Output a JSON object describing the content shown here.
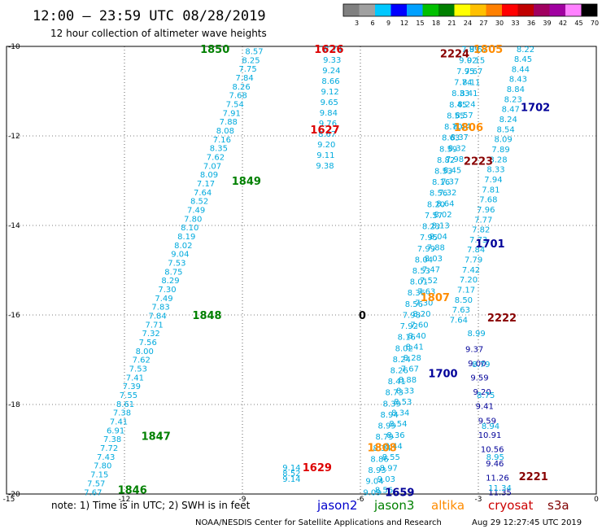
{
  "header": {
    "title": "12:00 — 23:59 UTC 08/28/2019",
    "subtitle": "12 hour collection of altimeter wave heights"
  },
  "colorbar": {
    "labels": [
      "3",
      "6",
      "9",
      "12",
      "15",
      "18",
      "21",
      "24",
      "27",
      "30",
      "33",
      "36",
      "39",
      "42",
      "45",
      "70",
      "(ft)"
    ],
    "colors": [
      "#808080",
      "#a0a0a0",
      "#00c8ff",
      "#0000ff",
      "#00a0ff",
      "#00c000",
      "#008000",
      "#ffff00",
      "#ffc000",
      "#ff8000",
      "#ff0000",
      "#c00000",
      "#a00060",
      "#a000a0",
      "#ff80ff",
      "#000000"
    ]
  },
  "footer": {
    "note": "note: 1) Time is in UTC; 2) SWH is in feet",
    "satellites": [
      {
        "name": "jason2",
        "color": "#0000cc"
      },
      {
        "name": "jason3",
        "color": "#008000"
      },
      {
        "name": "altika",
        "color": "#ff8c00"
      },
      {
        "name": "cryosat",
        "color": "#cc0000"
      },
      {
        "name": "s3a",
        "color": "#800000"
      }
    ],
    "credit": "NOAA/NESDIS Center for Satellite Applications and Research",
    "timestamp": "Aug 29 12:27:45 UTC 2019"
  },
  "chart_data": {
    "type": "scatter",
    "xlim": [
      -15,
      0
    ],
    "ylim": [
      -20,
      -10
    ],
    "x_ticks": [
      "-15",
      "-12",
      "-9",
      "-6",
      "-3",
      "0"
    ],
    "y_ticks": [
      "-10",
      "-12",
      "-14",
      "-16",
      "-18",
      "-20"
    ],
    "grid": true,
    "palette": {
      "lt": "#00aadd",
      "db": "#000099",
      "gr": "#008000",
      "rd": "#dd0000",
      "or": "#ff8c00",
      "mr": "#880000",
      "bk": "#000000"
    },
    "passes": [
      {
        "label": "1850",
        "x": -9.7,
        "y": -10.05,
        "c": "gr"
      },
      {
        "label": "1849",
        "x": -8.9,
        "y": -13.0,
        "c": "gr"
      },
      {
        "label": "1848",
        "x": -9.9,
        "y": -16.0,
        "c": "gr"
      },
      {
        "label": "1847",
        "x": -11.2,
        "y": -18.7,
        "c": "gr"
      },
      {
        "label": "1846",
        "x": -11.8,
        "y": -19.9,
        "c": "gr"
      },
      {
        "label": "1626",
        "x": -6.8,
        "y": -10.05,
        "c": "rd"
      },
      {
        "label": "1627",
        "x": -6.9,
        "y": -11.85,
        "c": "rd"
      },
      {
        "label": "1629",
        "x": -7.1,
        "y": -19.4,
        "c": "rd"
      },
      {
        "label": "2224",
        "x": -3.6,
        "y": -10.15,
        "c": "mr"
      },
      {
        "label": "2223",
        "x": -3.0,
        "y": -12.55,
        "c": "mr"
      },
      {
        "label": "2222",
        "x": -2.4,
        "y": -16.05,
        "c": "mr"
      },
      {
        "label": "2221",
        "x": -1.6,
        "y": -19.6,
        "c": "mr"
      },
      {
        "label": "1805",
        "x": -2.75,
        "y": -10.05,
        "c": "or"
      },
      {
        "label": "1806",
        "x": -3.25,
        "y": -11.8,
        "c": "or"
      },
      {
        "label": "1807",
        "x": -4.1,
        "y": -15.6,
        "c": "or"
      },
      {
        "label": "1808",
        "x": -5.45,
        "y": -18.95,
        "c": "or"
      },
      {
        "label": "1702",
        "x": -1.55,
        "y": -11.35,
        "c": "db"
      },
      {
        "label": "1701",
        "x": -2.7,
        "y": -14.4,
        "c": "db"
      },
      {
        "label": "1700",
        "x": -3.9,
        "y": -17.3,
        "c": "db"
      },
      {
        "label": "1659",
        "x": -5.0,
        "y": -19.95,
        "c": "db"
      },
      {
        "label": "0",
        "x": -5.95,
        "y": -16.0,
        "c": "bk"
      }
    ],
    "tracks": [
      {
        "id": "1850",
        "color": "lt",
        "x0": -8.7,
        "y0": -10.1,
        "x1": -12.8,
        "y1": -19.95,
        "values": [
          "8.57",
          "8.25",
          "7.75",
          "7.84",
          "8.26",
          "7.68",
          "7.54",
          "7.91",
          "7.88",
          "8.08",
          "7.16",
          "8.35",
          "7.62",
          "7.07",
          "8.09",
          "7.17",
          "7.64",
          "8.52",
          "7.49",
          "7.80",
          "8.10",
          "8.19",
          "8.02",
          "9.04",
          "7.53",
          "8.75",
          "8.29",
          "7.30",
          "7.49",
          "7.83",
          "7.84",
          "7.71",
          "7.32",
          "7.56",
          "8.00",
          "7.62",
          "7.53",
          "7.41",
          "7.39",
          "7.55",
          "8.61",
          "7.38",
          "7.41",
          "6.91",
          "7.38",
          "7.72",
          "7.43",
          "7.80",
          "7.15",
          "7.57",
          "7.67"
        ]
      },
      {
        "id": "1626",
        "color": "lt",
        "x0": -6.7,
        "y0": -10.05,
        "x1": -6.9,
        "y1": -12.65,
        "values": [
          "8.79",
          "9.33",
          "9.24",
          "8.66",
          "9.12",
          "9.65",
          "9.84",
          "9.76",
          "8.67",
          "9.20",
          "9.11",
          "9.38"
        ]
      },
      {
        "id": "1629",
        "color": "lt",
        "x0": -7.75,
        "y0": -19.4,
        "x1": -7.75,
        "y1": -19.65,
        "values": [
          "9.14",
          "8.52",
          "9.14"
        ]
      },
      {
        "id": "altika-1806",
        "color": "lt",
        "x0": -3.2,
        "y0": -10.05,
        "x1": -5.7,
        "y1": -19.95,
        "values": [
          "7.99",
          "9.02",
          "7.95",
          "7.74",
          "8.33",
          "8.45",
          "8.55",
          "8.70",
          "8.63",
          "8.59",
          "8.82",
          "8.53",
          "8.16",
          "8.56",
          "8.20",
          "7.57",
          "8.23",
          "7.95",
          "7.99",
          "8.04",
          "8.53",
          "8.01",
          "8.36",
          "8.56",
          "7.98",
          "7.92",
          "8.16",
          "8.02",
          "8.24",
          "8.26",
          "8.41",
          "8.73",
          "8.39",
          "8.94",
          "8.99",
          "8.79",
          "8.34",
          "8.86",
          "8.93",
          "9.04",
          "9.09"
        ]
      },
      {
        "id": "cryosat-2223",
        "color": "lt",
        "x0": -3.0,
        "y0": -10.05,
        "x1": -5.4,
        "y1": -19.9,
        "values": [
          "8.67",
          "9.15",
          "7.67",
          "8.11",
          "8.41",
          "8.24",
          "8.57",
          "8.44",
          "8.37",
          "8.32",
          "7.98",
          "8.45",
          "7.37",
          "7.32",
          "8.64",
          "8.02",
          "8.13",
          "8.04",
          "7.88",
          "8.03",
          "7.47",
          "7.52",
          "7.63",
          "7.30",
          "8.20",
          "7.60",
          "8.40",
          "8.41",
          "8.28",
          "7.67",
          "8.88",
          "8.33",
          "8.53",
          "8.34",
          "8.54",
          "8.36",
          "8.44",
          "8.55",
          "8.97",
          "9.03",
          "8.56"
        ]
      },
      {
        "id": "jason2-1702",
        "color": "lt",
        "x0": -1.8,
        "y0": -10.05,
        "x1": -3.5,
        "y1": -16.1,
        "values": [
          "8.22",
          "8.45",
          "8.44",
          "8.43",
          "8.84",
          "8.23",
          "8.47",
          "8.24",
          "8.54",
          "8.09",
          "7.89",
          "8.28",
          "8.33",
          "7.94",
          "7.81",
          "7.68",
          "7.96",
          "7.77",
          "7.82",
          "7.73",
          "7.84",
          "7.79",
          "7.42",
          "7.20",
          "7.17",
          "8.50",
          "7.63",
          "7.64"
        ]
      },
      {
        "id": "jason2-1701-south",
        "color": "db",
        "x0": -3.1,
        "y0": -16.75,
        "x1": -2.45,
        "y1": -19.95,
        "values": [
          "9.37",
          "9.00",
          "9.59",
          "9.20",
          "9.41",
          "9.59",
          "10.91",
          "10.56",
          "9.46",
          "11.26",
          "11.35"
        ]
      },
      {
        "id": "jason2-1701-south-lt",
        "color": "lt",
        "x0": -3.05,
        "y0": -16.4,
        "x1": -2.45,
        "y1": -19.85,
        "values": [
          "8.99",
          "8.79",
          "8.75",
          "8.94",
          "8.95",
          "11.34"
        ]
      }
    ]
  }
}
